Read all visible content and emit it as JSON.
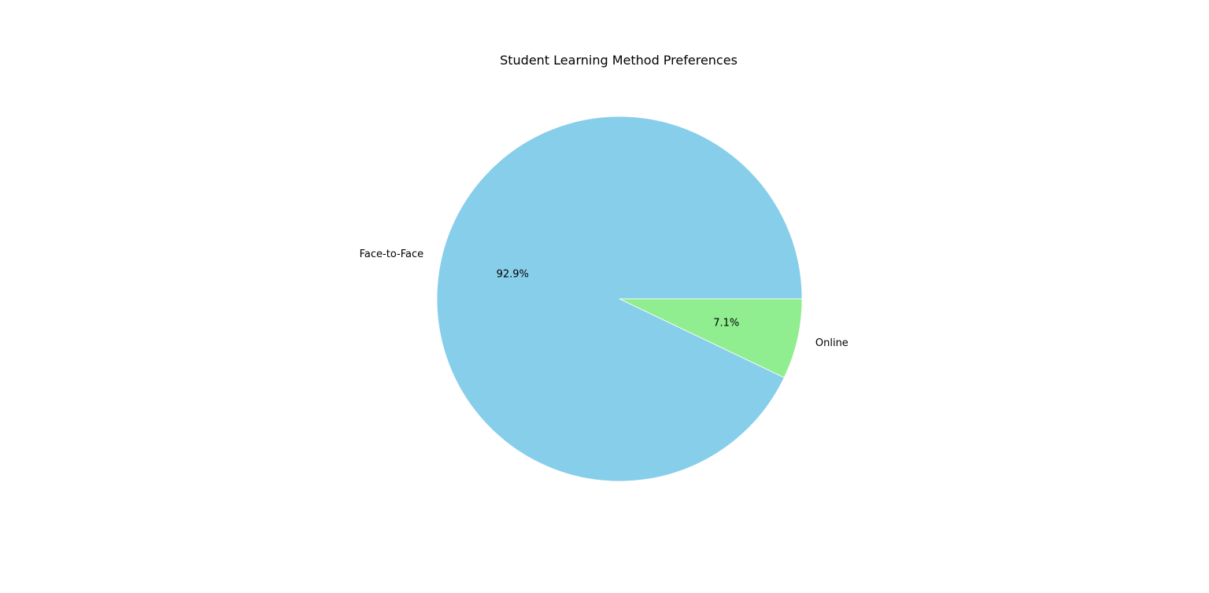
{
  "chart_data": {
    "type": "pie",
    "title": "Student Learning Method Preferences",
    "categories": [
      "Face-to-Face",
      "Online"
    ],
    "values": [
      92.9,
      7.1
    ],
    "percent_labels": [
      "92.9%",
      "7.1%"
    ],
    "colors": [
      "#87ceeb",
      "#90ee90"
    ],
    "start_angle_deg": 0,
    "direction": "counterclockwise"
  }
}
